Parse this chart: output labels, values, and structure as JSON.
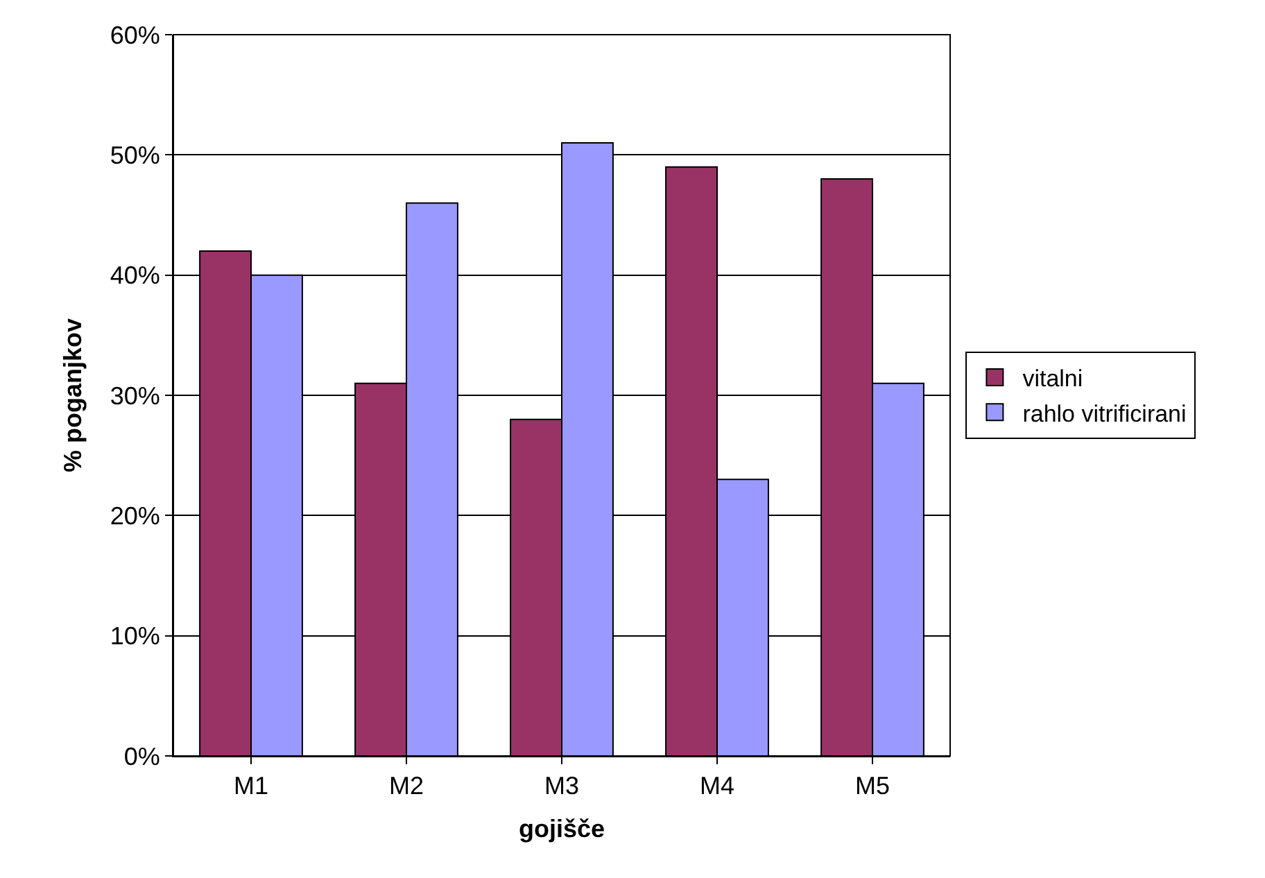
{
  "chart_data": {
    "type": "bar",
    "xlabel": "gojišče",
    "ylabel": "% poganjkov",
    "categories": [
      "M1",
      "M2",
      "M3",
      "M4",
      "M5"
    ],
    "series": [
      {
        "name": "vitalni",
        "color": "#993366",
        "values": [
          42,
          31,
          28,
          49,
          48
        ]
      },
      {
        "name": "rahlo vitrificirani",
        "color": "#9999ff",
        "values": [
          40,
          46,
          51,
          23,
          31
        ]
      }
    ],
    "ylim": [
      0,
      60
    ],
    "yticks": [
      {
        "value": 0,
        "label": "0%"
      },
      {
        "value": 10,
        "label": "10%"
      },
      {
        "value": 20,
        "label": "20%"
      },
      {
        "value": 30,
        "label": "30%"
      },
      {
        "value": 40,
        "label": "40%"
      },
      {
        "value": 50,
        "label": "50%"
      },
      {
        "value": 60,
        "label": "60%"
      }
    ],
    "grid": "y",
    "legend": "right"
  }
}
